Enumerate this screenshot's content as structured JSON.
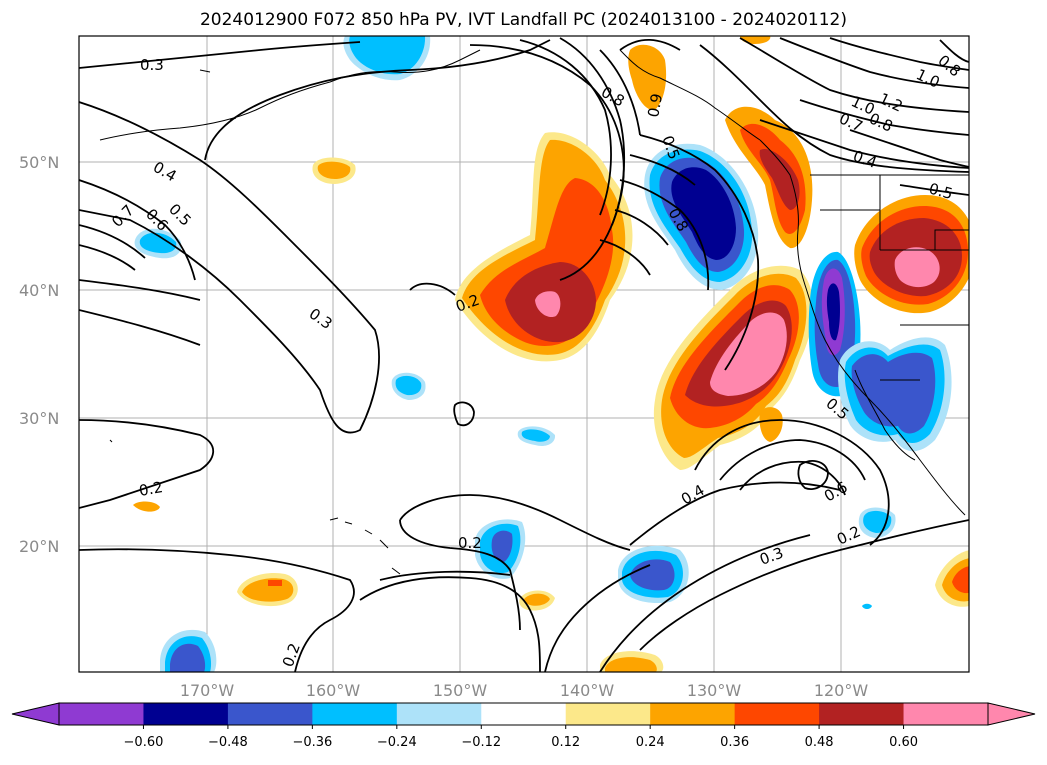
{
  "title": "2024012900 F072 850 hPa PV, IVT Landfall PC (2024013100 - 2024020112)",
  "map": {
    "lat_ticks": [
      "50°N",
      "40°N",
      "30°N",
      "20°N"
    ],
    "lon_ticks": [
      "170°W",
      "160°W",
      "150°W",
      "140°W",
      "130°W",
      "120°W"
    ],
    "contour_labels": [
      "0.3",
      "0.3",
      "0.2",
      "0.2",
      "0.2",
      "0.2",
      "0.4",
      "0.5",
      "0.6",
      "0.7",
      "0.8",
      "0.8",
      "1.0",
      "1.0",
      "1.2",
      "0.7",
      "0.8",
      "0.4",
      "0.5",
      "0.5",
      "0.9",
      "0.4",
      "0.6",
      "0.3",
      "0.2",
      "0.5",
      "0.8"
    ],
    "colors": {
      "n060": "#8f3ad2",
      "n048": "#000091",
      "n036": "#3a56cc",
      "n024": "#00bfff",
      "n012": "#ade2f9",
      "p012": "#fce88a",
      "p024": "#fda400",
      "p036": "#fe4700",
      "p048": "#b22222",
      "p060": "#ff87ad"
    }
  },
  "colorbar": {
    "labels": [
      "−0.60",
      "−0.48",
      "−0.36",
      "−0.24",
      "−0.12",
      "0.12",
      "0.24",
      "0.36",
      "0.48",
      "0.60"
    ],
    "colors": [
      "#8f3ad2",
      "#000091",
      "#3a56cc",
      "#00bfff",
      "#ade2f9",
      "#ffffff",
      "#fce88a",
      "#fda400",
      "#fe4700",
      "#b22222",
      "#ff87ad"
    ]
  }
}
